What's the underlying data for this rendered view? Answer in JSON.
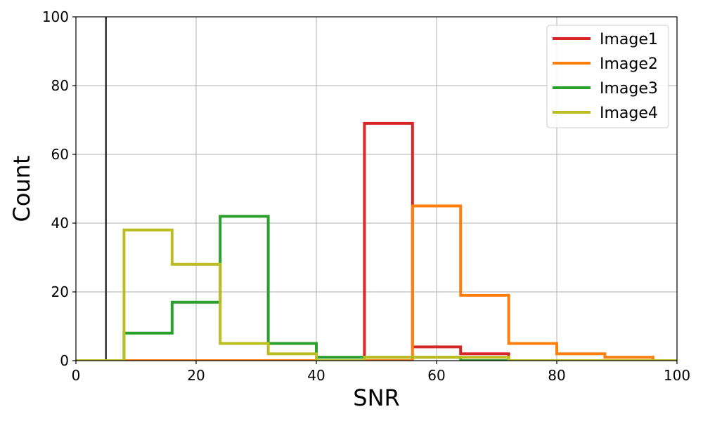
{
  "chart_data": {
    "type": "line",
    "xlabel": "SNR",
    "ylabel": "Count",
    "xlim": [
      0,
      100
    ],
    "ylim": [
      0,
      100
    ],
    "xticks": [
      0,
      20,
      40,
      60,
      80,
      100
    ],
    "yticks": [
      0,
      20,
      40,
      60,
      80,
      100
    ],
    "grid": true,
    "legend_position": "top-right",
    "reference_line_x": 5,
    "bin_edges": [
      0,
      8,
      16,
      24,
      32,
      40,
      48,
      56,
      64,
      72,
      80,
      88,
      96,
      104
    ],
    "series": [
      {
        "name": "Image1",
        "color": "#d62728",
        "values": [
          0,
          0,
          0,
          0,
          0,
          0,
          69,
          4,
          2,
          0,
          0,
          0,
          0
        ]
      },
      {
        "name": "Image2",
        "color": "#ff7f0e",
        "values": [
          0,
          0,
          0,
          0,
          0,
          0,
          0,
          45,
          19,
          5,
          2,
          1,
          0
        ]
      },
      {
        "name": "Image3",
        "color": "#2ca02c",
        "values": [
          0,
          8,
          17,
          42,
          5,
          1,
          1,
          1,
          0,
          0,
          0,
          0,
          0
        ]
      },
      {
        "name": "Image4",
        "color": "#bcbd22",
        "values": [
          0,
          38,
          28,
          5,
          2,
          0,
          1,
          1,
          1,
          0,
          0,
          0,
          0
        ]
      }
    ]
  }
}
